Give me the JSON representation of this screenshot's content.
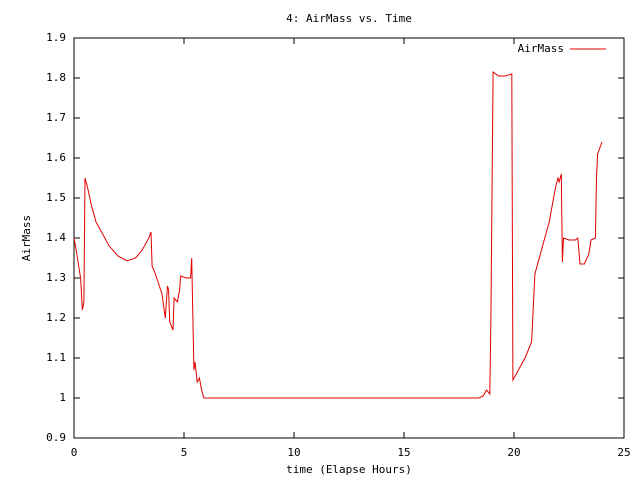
{
  "chart_data": {
    "type": "line",
    "title": "4: AirMass vs. Time",
    "x_label": "time (Elapse Hours)",
    "y_label": "AirMass",
    "xlim": [
      0,
      25
    ],
    "xticks": [
      0,
      5,
      10,
      15,
      20,
      25
    ],
    "ylim": [
      0.9,
      1.9
    ],
    "yticks": [
      0.9,
      1,
      1.1,
      1.2,
      1.3,
      1.4,
      1.5,
      1.6,
      1.7,
      1.8,
      1.9
    ],
    "grid": false,
    "legend": "top-right",
    "x": [
      0,
      0.1,
      0.3,
      0.38,
      0.45,
      0.5,
      0.6,
      0.8,
      1.0,
      1.3,
      1.6,
      2.0,
      2.4,
      2.8,
      3.1,
      3.4,
      3.5,
      3.55,
      3.7,
      4.0,
      4.15,
      4.25,
      4.3,
      4.35,
      4.5,
      4.55,
      4.7,
      4.8,
      4.85,
      5.1,
      5.3,
      5.35,
      5.45,
      5.5,
      5.6,
      5.7,
      5.8,
      5.9,
      18.4,
      18.6,
      18.75,
      18.9,
      18.95,
      19.05,
      19.3,
      19.6,
      19.9,
      19.95,
      20.2,
      20.5,
      20.8,
      20.95,
      21.2,
      21.6,
      21.9,
      22.0,
      22.05,
      22.15,
      22.2,
      22.25,
      22.5,
      22.8,
      22.9,
      23.0,
      23.2,
      23.4,
      23.5,
      23.7,
      23.75,
      23.8,
      24.0
    ],
    "series": [
      {
        "name": "AirMass",
        "color": "#e00000",
        "values": [
          1.4,
          1.37,
          1.3,
          1.22,
          1.24,
          1.55,
          1.53,
          1.48,
          1.44,
          1.41,
          1.38,
          1.355,
          1.343,
          1.35,
          1.37,
          1.4,
          1.415,
          1.33,
          1.31,
          1.26,
          1.2,
          1.28,
          1.27,
          1.19,
          1.17,
          1.25,
          1.24,
          1.27,
          1.305,
          1.3,
          1.3,
          1.35,
          1.07,
          1.09,
          1.04,
          1.05,
          1.02,
          1.0,
          1.0,
          1.005,
          1.02,
          1.01,
          1.2,
          1.815,
          1.805,
          1.805,
          1.81,
          1.045,
          1.07,
          1.1,
          1.14,
          1.31,
          1.36,
          1.44,
          1.53,
          1.55,
          1.54,
          1.56,
          1.34,
          1.4,
          1.395,
          1.395,
          1.4,
          1.335,
          1.335,
          1.36,
          1.395,
          1.4,
          1.55,
          1.61,
          1.64
        ]
      }
    ]
  }
}
